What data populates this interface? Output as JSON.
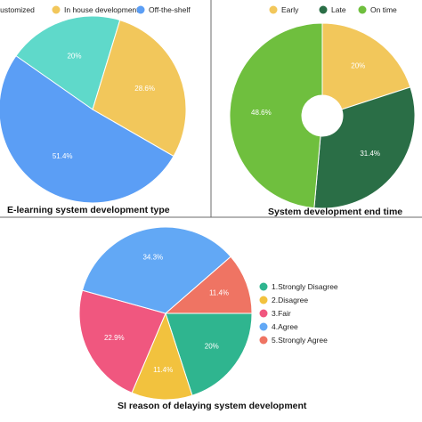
{
  "chart_data": [
    {
      "type": "pie",
      "title": "E-learning system development type",
      "legend_position": "top",
      "categories": [
        "Customized",
        "In house development",
        "Off-the-shelf"
      ],
      "values": [
        20,
        28.6,
        51.4
      ],
      "labels": [
        "20%",
        "28.6%",
        "51.4%"
      ],
      "colors": [
        "#5fd9ca",
        "#f2c75b",
        "#5b9ef5"
      ]
    },
    {
      "type": "pie",
      "donut": true,
      "title": "System development end time",
      "legend_position": "top",
      "categories": [
        "Early",
        "Late",
        "On time"
      ],
      "values": [
        20,
        31.4,
        48.6
      ],
      "labels": [
        "20%",
        "31.4%",
        "48.6%"
      ],
      "colors": [
        "#f2c75b",
        "#2a6e46",
        "#6fbf3e"
      ]
    },
    {
      "type": "pie",
      "title": "SI reason of delaying system development",
      "legend_position": "right",
      "categories": [
        "1.Strongly Disagree",
        "2.Disagree",
        "3.Fair",
        "4.Agree",
        "5.Strongly Agree"
      ],
      "values": [
        20,
        11.4,
        22.9,
        34.3,
        11.4
      ],
      "labels": [
        "20%",
        "11.4%",
        "22.9%",
        "34.3%",
        "11.4%"
      ],
      "colors": [
        "#2fb58f",
        "#f2c23e",
        "#f0577f",
        "#62a8f5",
        "#ef7463"
      ]
    }
  ]
}
